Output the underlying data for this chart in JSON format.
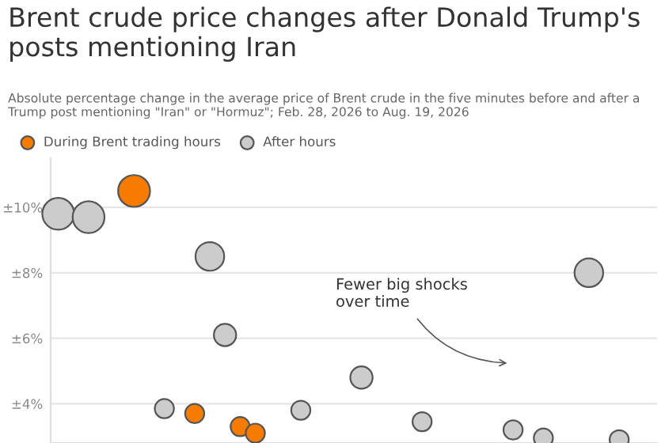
{
  "chart_data": {
    "type": "bubble",
    "title": "Brent crude price changes after Donald Trump's posts mentioning Iran",
    "subtitle": "Absolute percentage change in the average price of Brent crude in the five minutes before and after a Trump post mentioning \"Iran\" or \"Hormuz\"; Feb. 28, 2026 to Aug. 19, 2026",
    "annotations": [
      "Fewer big shocks\nover time"
    ],
    "categories": [
      null,
      null,
      null,
      null,
      null,
      null,
      null,
      null,
      null,
      null,
      null,
      null,
      null,
      null,
      null,
      null,
      null,
      null,
      null,
      null,
      null,
      null,
      null,
      null,
      null,
      null,
      null,
      null,
      null,
      null,
      null,
      null,
      null,
      null,
      null,
      null,
      null,
      null,
      null,
      null
    ],
    "series": [
      {
        "name": "During Brent trading hours",
        "color": "#f57c00",
        "values": [
          null,
          null,
          null,
          null,
          null,
          10.5,
          null,
          null,
          null,
          3.7,
          null,
          null,
          3.3,
          3.1,
          null,
          null,
          null,
          null,
          null,
          null,
          null,
          null,
          null,
          null,
          null,
          null,
          null,
          null,
          null,
          null,
          null,
          null,
          null,
          null,
          null,
          null,
          null,
          null,
          null,
          null
        ],
        "sizes": [
          null,
          null,
          null,
          null,
          null,
          1,
          null,
          null,
          null,
          0.36,
          null,
          null,
          0.36,
          0.36,
          null,
          null,
          null,
          null,
          null,
          null,
          null,
          null,
          null,
          null,
          null,
          null,
          null,
          null,
          null,
          null,
          null,
          null,
          null,
          null,
          null,
          null,
          null,
          null,
          null,
          null
        ]
      },
      {
        "name": "After hours",
        "color": "#cccccc",
        "values": [
          9.8,
          null,
          9.7,
          null,
          null,
          null,
          null,
          3.85,
          null,
          null,
          8.5,
          6.1,
          null,
          null,
          null,
          null,
          3.8,
          null,
          null,
          null,
          4.8,
          null,
          null,
          null,
          3.45,
          null,
          null,
          null,
          null,
          null,
          3.2,
          null,
          2.95,
          null,
          null,
          8.0,
          null,
          2.9,
          null,
          null
        ],
        "sizes": [
          1,
          null,
          1,
          null,
          null,
          null,
          null,
          0.36,
          null,
          null,
          0.81,
          0.49,
          null,
          null,
          null,
          null,
          0.36,
          null,
          null,
          null,
          0.49,
          null,
          null,
          null,
          0.36,
          null,
          null,
          null,
          null,
          null,
          0.36,
          null,
          0.36,
          null,
          null,
          0.81,
          null,
          0.36,
          null,
          null
        ]
      }
    ],
    "ylim": [
      2.8,
      11.5
    ],
    "yticks": [
      {
        "value": 4,
        "label": "±4%"
      },
      {
        "value": 6,
        "label": "±6%"
      },
      {
        "value": 8,
        "label": "±8%"
      },
      {
        "value": 10,
        "label": "±10%"
      }
    ],
    "grid": "y",
    "legend": "top",
    "tick_labels": "y"
  }
}
